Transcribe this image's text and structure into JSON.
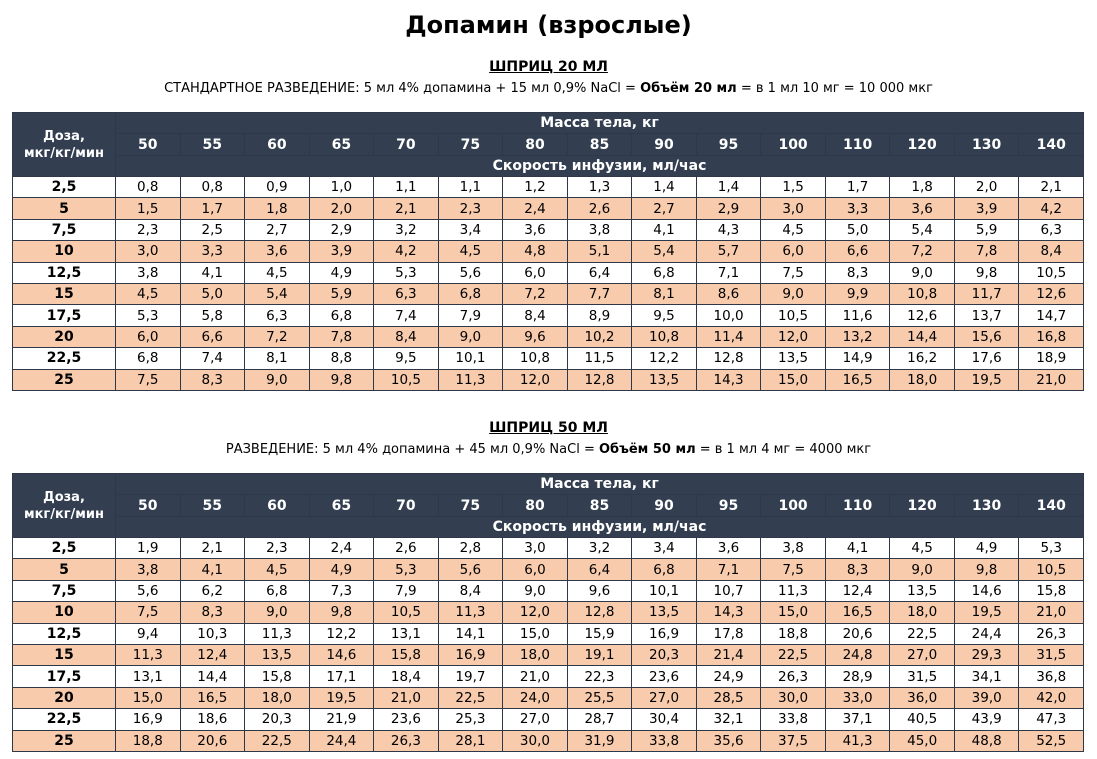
{
  "title": "Допамин (взрослые)",
  "dose_header": [
    "Доза,",
    "мкг/кг/мин"
  ],
  "weight_header": "Масса тела, кг",
  "rate_header": "Скорость инфузии, мл/час",
  "weights": [
    "50",
    "55",
    "60",
    "65",
    "70",
    "75",
    "80",
    "85",
    "90",
    "95",
    "100",
    "110",
    "120",
    "130",
    "140"
  ],
  "sections": [
    {
      "title": "ШПРИЦ 20 МЛ",
      "desc_pre": "СТАНДАРТНОЕ РАЗВЕДЕНИЕ: 5 мл 4% допамина + 15 мл 0,9% NaCl = ",
      "desc_bold": "Объём 20 мл",
      "desc_post": " = в 1 мл 10 мг = 10 000 мкг",
      "rows": [
        {
          "dose": "2,5",
          "values": [
            "0,8",
            "0,8",
            "0,9",
            "1,0",
            "1,1",
            "1,1",
            "1,2",
            "1,3",
            "1,4",
            "1,4",
            "1,5",
            "1,7",
            "1,8",
            "2,0",
            "2,1"
          ]
        },
        {
          "dose": "5",
          "values": [
            "1,5",
            "1,7",
            "1,8",
            "2,0",
            "2,1",
            "2,3",
            "2,4",
            "2,6",
            "2,7",
            "2,9",
            "3,0",
            "3,3",
            "3,6",
            "3,9",
            "4,2"
          ]
        },
        {
          "dose": "7,5",
          "values": [
            "2,3",
            "2,5",
            "2,7",
            "2,9",
            "3,2",
            "3,4",
            "3,6",
            "3,8",
            "4,1",
            "4,3",
            "4,5",
            "5,0",
            "5,4",
            "5,9",
            "6,3"
          ]
        },
        {
          "dose": "10",
          "values": [
            "3,0",
            "3,3",
            "3,6",
            "3,9",
            "4,2",
            "4,5",
            "4,8",
            "5,1",
            "5,4",
            "5,7",
            "6,0",
            "6,6",
            "7,2",
            "7,8",
            "8,4"
          ]
        },
        {
          "dose": "12,5",
          "values": [
            "3,8",
            "4,1",
            "4,5",
            "4,9",
            "5,3",
            "5,6",
            "6,0",
            "6,4",
            "6,8",
            "7,1",
            "7,5",
            "8,3",
            "9,0",
            "9,8",
            "10,5"
          ]
        },
        {
          "dose": "15",
          "values": [
            "4,5",
            "5,0",
            "5,4",
            "5,9",
            "6,3",
            "6,8",
            "7,2",
            "7,7",
            "8,1",
            "8,6",
            "9,0",
            "9,9",
            "10,8",
            "11,7",
            "12,6"
          ]
        },
        {
          "dose": "17,5",
          "values": [
            "5,3",
            "5,8",
            "6,3",
            "6,8",
            "7,4",
            "7,9",
            "8,4",
            "8,9",
            "9,5",
            "10,0",
            "10,5",
            "11,6",
            "12,6",
            "13,7",
            "14,7"
          ]
        },
        {
          "dose": "20",
          "values": [
            "6,0",
            "6,6",
            "7,2",
            "7,8",
            "8,4",
            "9,0",
            "9,6",
            "10,2",
            "10,8",
            "11,4",
            "12,0",
            "13,2",
            "14,4",
            "15,6",
            "16,8"
          ]
        },
        {
          "dose": "22,5",
          "values": [
            "6,8",
            "7,4",
            "8,1",
            "8,8",
            "9,5",
            "10,1",
            "10,8",
            "11,5",
            "12,2",
            "12,8",
            "13,5",
            "14,9",
            "16,2",
            "17,6",
            "18,9"
          ]
        },
        {
          "dose": "25",
          "values": [
            "7,5",
            "8,3",
            "9,0",
            "9,8",
            "10,5",
            "11,3",
            "12,0",
            "12,8",
            "13,5",
            "14,3",
            "15,0",
            "16,5",
            "18,0",
            "19,5",
            "21,0"
          ]
        }
      ]
    },
    {
      "title": "ШПРИЦ 50 МЛ",
      "desc_pre": "РАЗВЕДЕНИЕ: 5 мл 4% допамина + 45 мл 0,9% NaCl = ",
      "desc_bold": "Объём 50 мл",
      "desc_post": " = в 1 мл 4 мг = 4000 мкг",
      "rows": [
        {
          "dose": "2,5",
          "values": [
            "1,9",
            "2,1",
            "2,3",
            "2,4",
            "2,6",
            "2,8",
            "3,0",
            "3,2",
            "3,4",
            "3,6",
            "3,8",
            "4,1",
            "4,5",
            "4,9",
            "5,3"
          ]
        },
        {
          "dose": "5",
          "values": [
            "3,8",
            "4,1",
            "4,5",
            "4,9",
            "5,3",
            "5,6",
            "6,0",
            "6,4",
            "6,8",
            "7,1",
            "7,5",
            "8,3",
            "9,0",
            "9,8",
            "10,5"
          ]
        },
        {
          "dose": "7,5",
          "values": [
            "5,6",
            "6,2",
            "6,8",
            "7,3",
            "7,9",
            "8,4",
            "9,0",
            "9,6",
            "10,1",
            "10,7",
            "11,3",
            "12,4",
            "13,5",
            "14,6",
            "15,8"
          ]
        },
        {
          "dose": "10",
          "values": [
            "7,5",
            "8,3",
            "9,0",
            "9,8",
            "10,5",
            "11,3",
            "12,0",
            "12,8",
            "13,5",
            "14,3",
            "15,0",
            "16,5",
            "18,0",
            "19,5",
            "21,0"
          ]
        },
        {
          "dose": "12,5",
          "values": [
            "9,4",
            "10,3",
            "11,3",
            "12,2",
            "13,1",
            "14,1",
            "15,0",
            "15,9",
            "16,9",
            "17,8",
            "18,8",
            "20,6",
            "22,5",
            "24,4",
            "26,3"
          ]
        },
        {
          "dose": "15",
          "values": [
            "11,3",
            "12,4",
            "13,5",
            "14,6",
            "15,8",
            "16,9",
            "18,0",
            "19,1",
            "20,3",
            "21,4",
            "22,5",
            "24,8",
            "27,0",
            "29,3",
            "31,5"
          ]
        },
        {
          "dose": "17,5",
          "values": [
            "13,1",
            "14,4",
            "15,8",
            "17,1",
            "18,4",
            "19,7",
            "21,0",
            "22,3",
            "23,6",
            "24,9",
            "26,3",
            "28,9",
            "31,5",
            "34,1",
            "36,8"
          ]
        },
        {
          "dose": "20",
          "values": [
            "15,0",
            "16,5",
            "18,0",
            "19,5",
            "21,0",
            "22,5",
            "24,0",
            "25,5",
            "27,0",
            "28,5",
            "30,0",
            "33,0",
            "36,0",
            "39,0",
            "42,0"
          ]
        },
        {
          "dose": "22,5",
          "values": [
            "16,9",
            "18,6",
            "20,3",
            "21,9",
            "23,6",
            "25,3",
            "27,0",
            "28,7",
            "30,4",
            "32,1",
            "33,8",
            "37,1",
            "40,5",
            "43,9",
            "47,3"
          ]
        },
        {
          "dose": "25",
          "values": [
            "18,8",
            "20,6",
            "22,5",
            "24,4",
            "26,3",
            "28,1",
            "30,0",
            "31,9",
            "33,8",
            "35,6",
            "37,5",
            "41,3",
            "45,0",
            "48,8",
            "52,5"
          ]
        }
      ]
    }
  ]
}
